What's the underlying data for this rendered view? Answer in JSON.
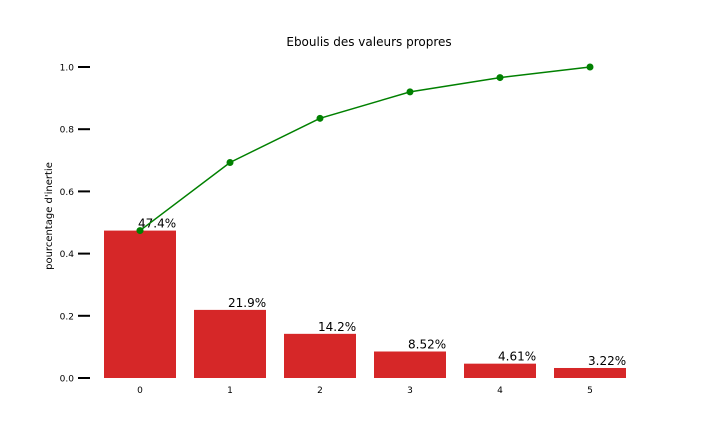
{
  "chart_data": {
    "type": "bar",
    "title": "Eboulis des valeurs propres",
    "xlabel": "",
    "ylabel": "pourcentage d'inertie",
    "categories": [
      "0",
      "1",
      "2",
      "3",
      "4",
      "5"
    ],
    "values": [
      0.474,
      0.219,
      0.142,
      0.0852,
      0.0461,
      0.0322
    ],
    "bar_labels": [
      "47.4%",
      "21.9%",
      "14.2%",
      "8.52%",
      "4.61%",
      "3.22%"
    ],
    "cumulative": [
      0.474,
      0.693,
      0.835,
      0.92,
      0.966,
      1.0
    ],
    "ylim": [
      0,
      1.0
    ],
    "yticks": [
      0.0,
      0.2,
      0.4,
      0.6,
      0.8,
      1.0
    ],
    "ytick_labels": [
      "0.0",
      "0.2",
      "0.4",
      "0.6",
      "0.8",
      "1.0"
    ],
    "grid": false,
    "colors": {
      "bar": "#d62728",
      "line": "#008000"
    }
  }
}
